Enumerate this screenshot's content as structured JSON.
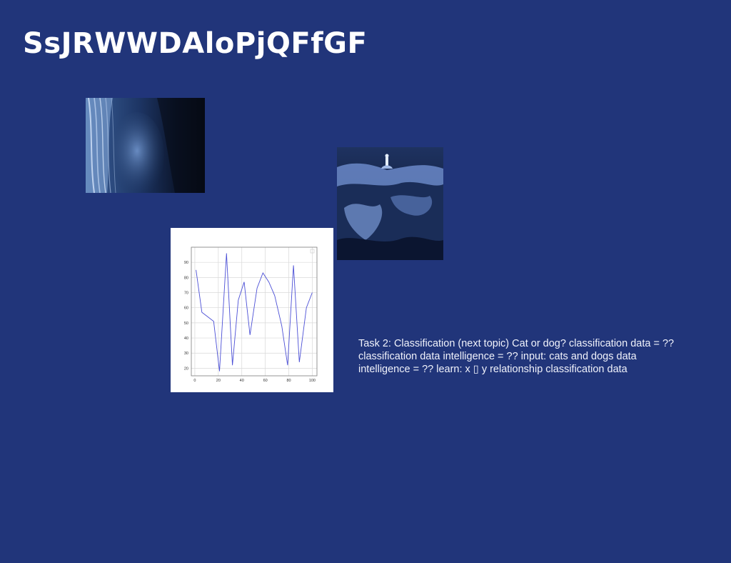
{
  "slide": {
    "title": "SsJRWWDAloPjQFfGF",
    "caption": "Task 2: Classification (next topic) Cat or dog? classification data = ?? classification data intelligence = ?? input: cats and dogs data intelligence = ?? learn: x ▯ y relationship classification data"
  },
  "images": {
    "hair": "hair-photo",
    "rock": "rock-landscape-photo"
  },
  "chart_data": {
    "type": "line",
    "x": [
      1,
      6,
      11,
      16,
      21,
      27,
      32,
      37,
      42,
      47,
      53,
      58,
      63,
      68,
      74,
      79,
      84,
      89,
      95,
      100
    ],
    "y": [
      85,
      57,
      54,
      51,
      18,
      96,
      22,
      65,
      77,
      42,
      73,
      83,
      77,
      68,
      48,
      22,
      88,
      24,
      60,
      70
    ],
    "x_ticks": [
      "0",
      "20",
      "40",
      "60",
      "80",
      "100"
    ],
    "y_ticks": [
      "20",
      "30",
      "40",
      "50",
      "60",
      "70",
      "80",
      "90"
    ],
    "xlim": [
      -3,
      104
    ],
    "ylim": [
      15,
      100
    ],
    "grid": true,
    "legend": "top-right",
    "colors": {
      "line": "#4b4fd6",
      "grid": "#d8d8d8"
    }
  }
}
